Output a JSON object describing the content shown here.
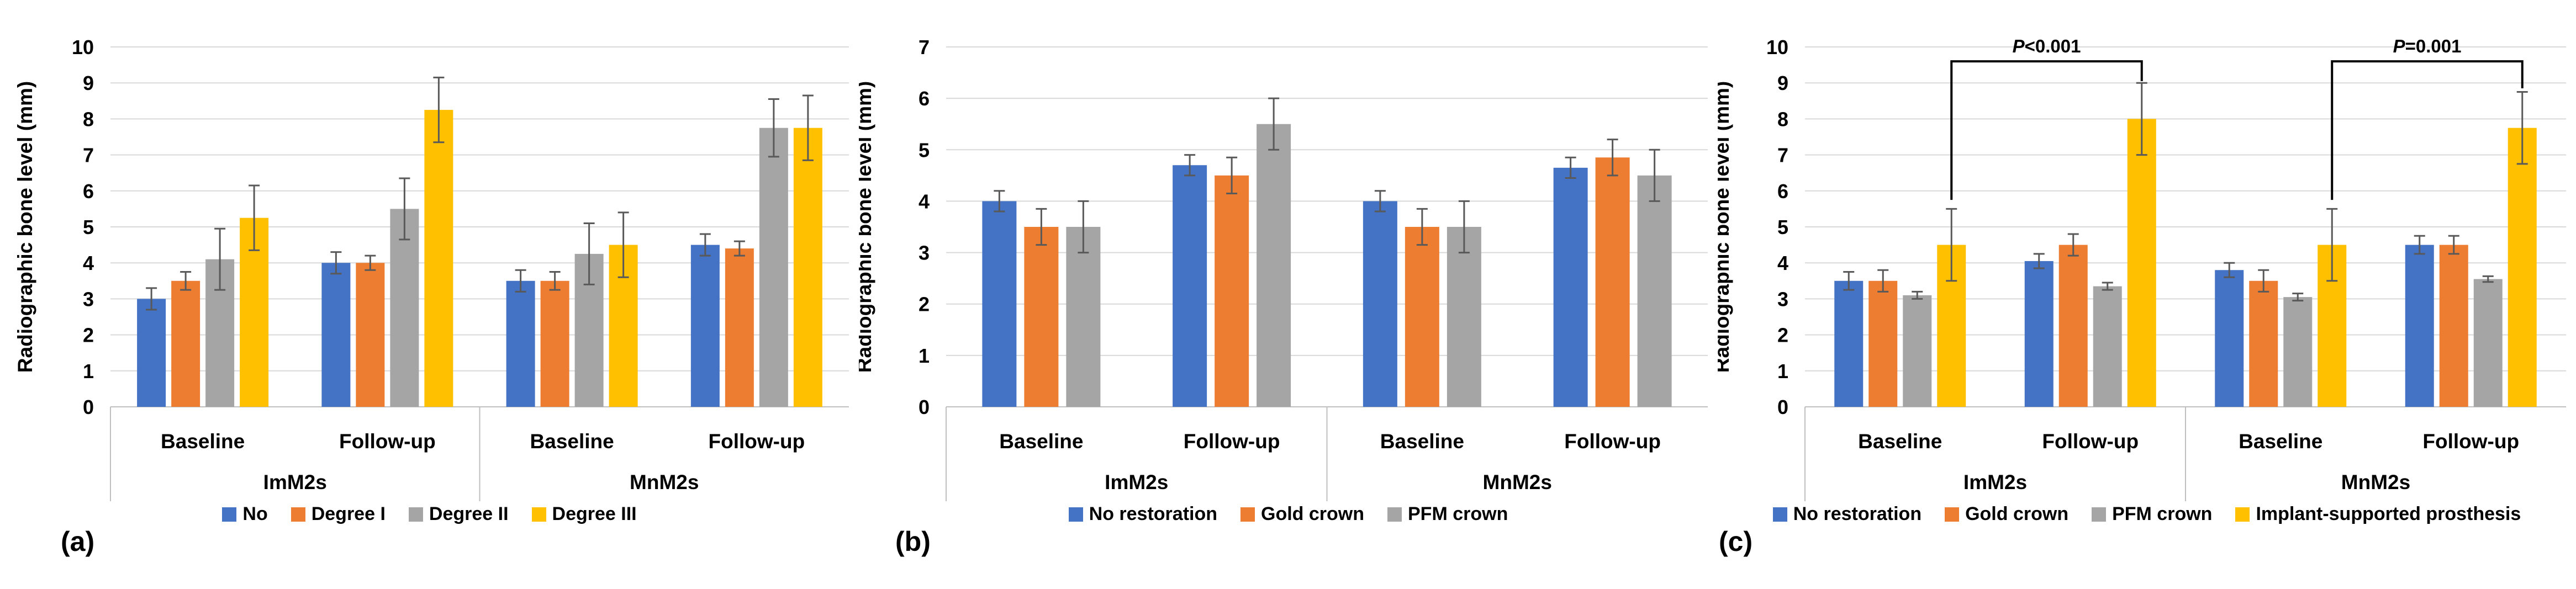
{
  "figure": {
    "background": "#FFFFFF",
    "colors": {
      "gridline": "#D9D9D9",
      "axis_line": "#BFBFBF",
      "error_bar": "#595959",
      "text": "#000000",
      "blue": "#4472C4",
      "orange": "#ED7D31",
      "gray": "#A5A5A5",
      "yellow": "#FFC000"
    }
  },
  "charts": [
    {
      "panel_label": "(a)",
      "chart_data": {
        "type": "bar",
        "title": "",
        "xlabel": "",
        "ylabel": "Radiographic bone level (mm)",
        "ylim": [
          0,
          10
        ],
        "ytick_step": 1,
        "grid": true,
        "legend_position": "bottom",
        "categories": [
          "Baseline",
          "Follow-up",
          "Baseline",
          "Follow-up"
        ],
        "category_groups": [
          "ImM2s",
          "MnM2s"
        ],
        "series": [
          {
            "name": "No",
            "color": "#4472C4",
            "values": [
              3.0,
              4.0,
              3.5,
              4.5
            ],
            "errors": [
              0.3,
              0.3,
              0.3,
              0.3
            ]
          },
          {
            "name": "Degree I",
            "color": "#ED7D31",
            "values": [
              3.5,
              4.0,
              3.5,
              4.4
            ],
            "errors": [
              0.25,
              0.2,
              0.25,
              0.2
            ]
          },
          {
            "name": "Degree II",
            "color": "#A5A5A5",
            "values": [
              4.1,
              5.5,
              4.25,
              7.75
            ],
            "errors": [
              0.85,
              0.85,
              0.85,
              0.8
            ]
          },
          {
            "name": "Degree III",
            "color": "#FFC000",
            "values": [
              5.25,
              8.25,
              4.5,
              7.75
            ],
            "errors": [
              0.9,
              0.9,
              0.9,
              0.9
            ]
          }
        ],
        "significance": []
      }
    },
    {
      "panel_label": "(b)",
      "chart_data": {
        "type": "bar",
        "title": "",
        "xlabel": "",
        "ylabel": "Radiographic bone level (mm)",
        "ylim": [
          0,
          7
        ],
        "ytick_step": 1,
        "grid": true,
        "legend_position": "bottom",
        "categories": [
          "Baseline",
          "Follow-up",
          "Baseline",
          "Follow-up"
        ],
        "category_groups": [
          "ImM2s",
          "MnM2s"
        ],
        "series": [
          {
            "name": "No restoration",
            "color": "#4472C4",
            "values": [
              4.0,
              4.7,
              4.0,
              4.65
            ],
            "errors": [
              0.2,
              0.2,
              0.2,
              0.2
            ]
          },
          {
            "name": "Gold crown",
            "color": "#ED7D31",
            "values": [
              3.5,
              4.5,
              3.5,
              4.85
            ],
            "errors": [
              0.35,
              0.35,
              0.35,
              0.35
            ]
          },
          {
            "name": "PFM crown",
            "color": "#A5A5A5",
            "values": [
              3.5,
              5.5,
              3.5,
              4.5
            ],
            "errors": [
              0.5,
              0.5,
              0.5,
              0.5
            ]
          }
        ],
        "significance": []
      }
    },
    {
      "panel_label": "(c)",
      "chart_data": {
        "type": "bar",
        "title": "",
        "xlabel": "",
        "ylabel": "Radiographic bone level (mm)",
        "ylim": [
          0,
          10
        ],
        "ytick_step": 1,
        "grid": true,
        "legend_position": "bottom",
        "categories": [
          "Baseline",
          "Follow-up",
          "Baseline",
          "Follow-up"
        ],
        "category_groups": [
          "ImM2s",
          "MnM2s"
        ],
        "series": [
          {
            "name": "No restoration",
            "color": "#4472C4",
            "values": [
              3.5,
              4.05,
              3.8,
              4.5
            ],
            "errors": [
              0.25,
              0.2,
              0.2,
              0.25
            ]
          },
          {
            "name": "Gold crown",
            "color": "#ED7D31",
            "values": [
              3.5,
              4.5,
              3.5,
              4.5
            ],
            "errors": [
              0.3,
              0.3,
              0.3,
              0.25
            ]
          },
          {
            "name": "PFM crown",
            "color": "#A5A5A5",
            "values": [
              3.1,
              3.35,
              3.05,
              3.55
            ],
            "errors": [
              0.1,
              0.1,
              0.1,
              0.08
            ]
          },
          {
            "name": "Implant-supported prosthesis",
            "color": "#FFC000",
            "values": [
              4.5,
              8.0,
              4.5,
              7.75
            ],
            "errors": [
              1.0,
              1.0,
              1.0,
              1.0
            ]
          }
        ],
        "significance": [
          {
            "label": "P<0.001",
            "from_category": 0,
            "to_category": 1,
            "series_index": 3,
            "bracket_top": 9.6,
            "left_end": 5.75,
            "right_end": 9.05
          },
          {
            "label": "P=0.001",
            "from_category": 2,
            "to_category": 3,
            "series_index": 3,
            "bracket_top": 9.6,
            "left_end": 5.75,
            "right_end": 8.85
          }
        ]
      }
    }
  ]
}
